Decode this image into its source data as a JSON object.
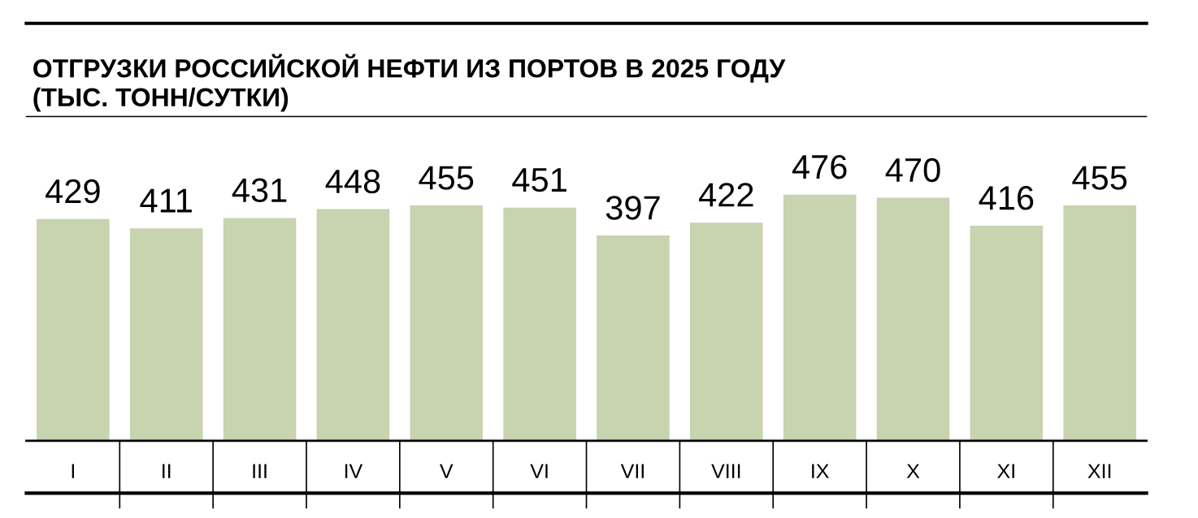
{
  "chart_data": {
    "type": "bar",
    "title": "ОТГРУЗКИ РОССИЙСКОЙ НЕФТИ ИЗ ПОРТОВ В 2025 ГОДУ\n(ТЫС. ТОНН/СУТКИ)",
    "categories": [
      "I",
      "II",
      "III",
      "IV",
      "V",
      "VI",
      "VII",
      "VIII",
      "IX",
      "X",
      "XI",
      "XII"
    ],
    "values": [
      429,
      411,
      431,
      448,
      455,
      451,
      397,
      422,
      476,
      470,
      416,
      455
    ],
    "color": "#c8d3b0",
    "data_labels": true,
    "grid": false,
    "legend": false
  }
}
